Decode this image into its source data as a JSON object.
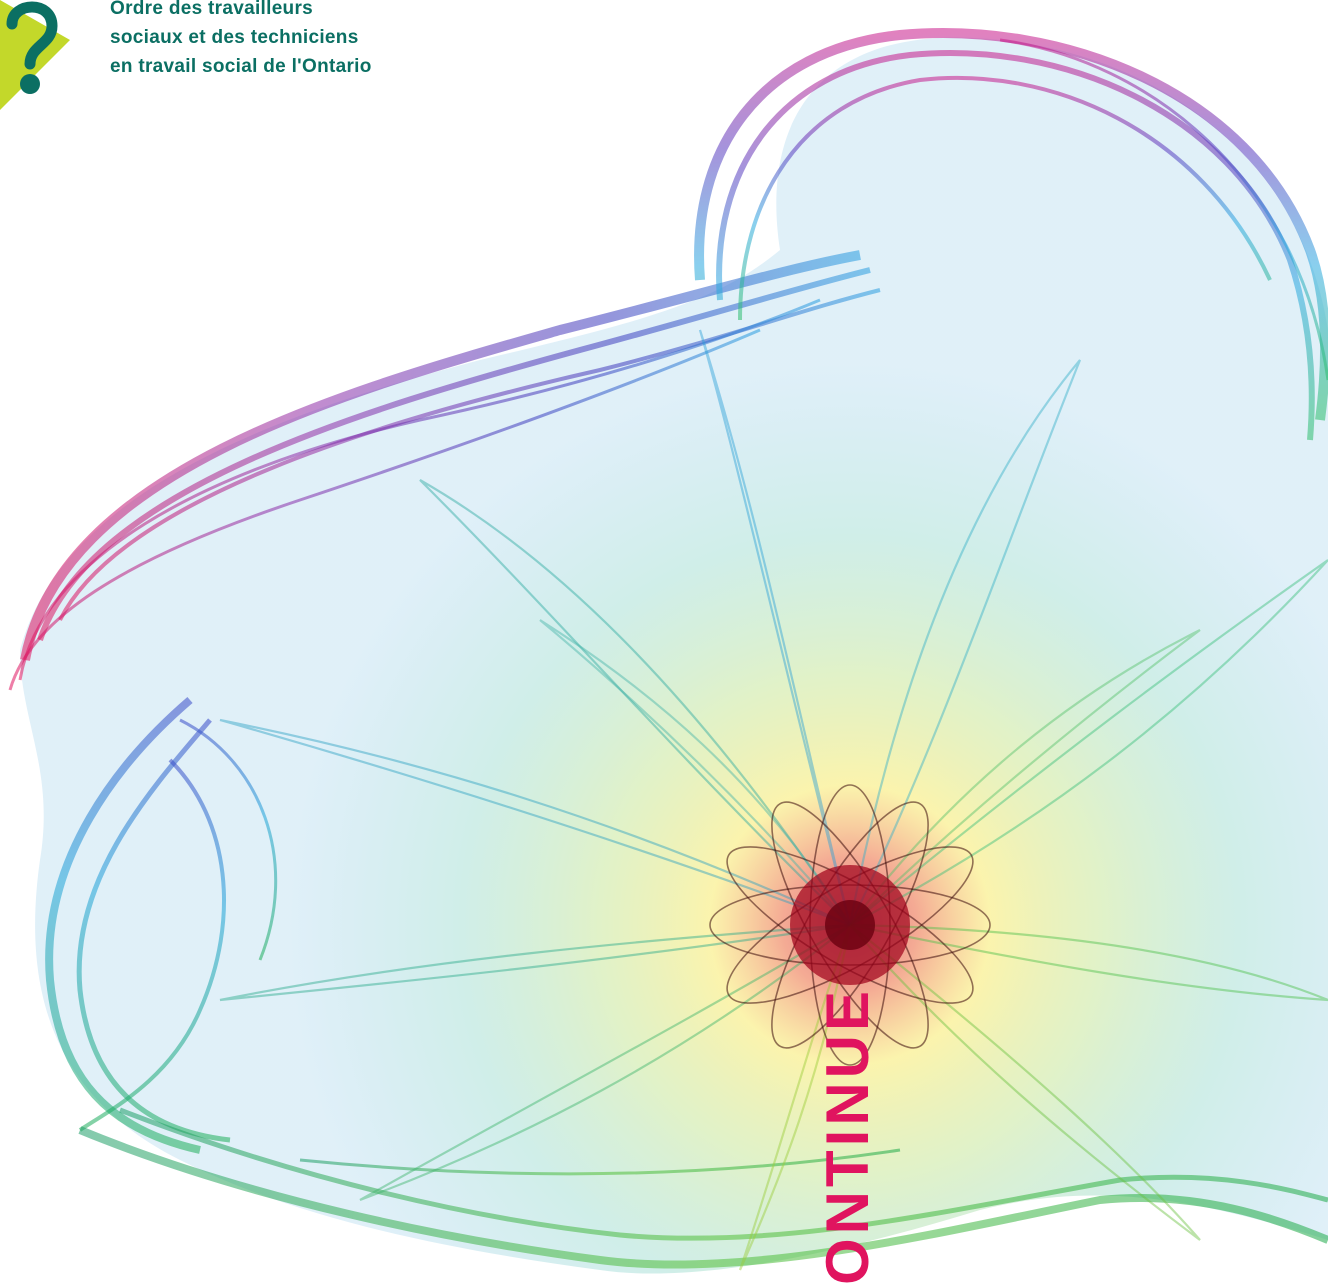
{
  "org": {
    "lines": [
      "Ordre des travailleurs",
      "sociaux et des techniciens",
      "en travail social de l'Ontario"
    ]
  },
  "cover": {
    "vertical_word": "ONTINUE"
  },
  "colors": {
    "brand_teal": "#0b6f63",
    "logo_lime": "#c3d82a",
    "accent_magenta": "#e0145f"
  },
  "icons": {
    "logo": "question-mark-logo-icon"
  }
}
